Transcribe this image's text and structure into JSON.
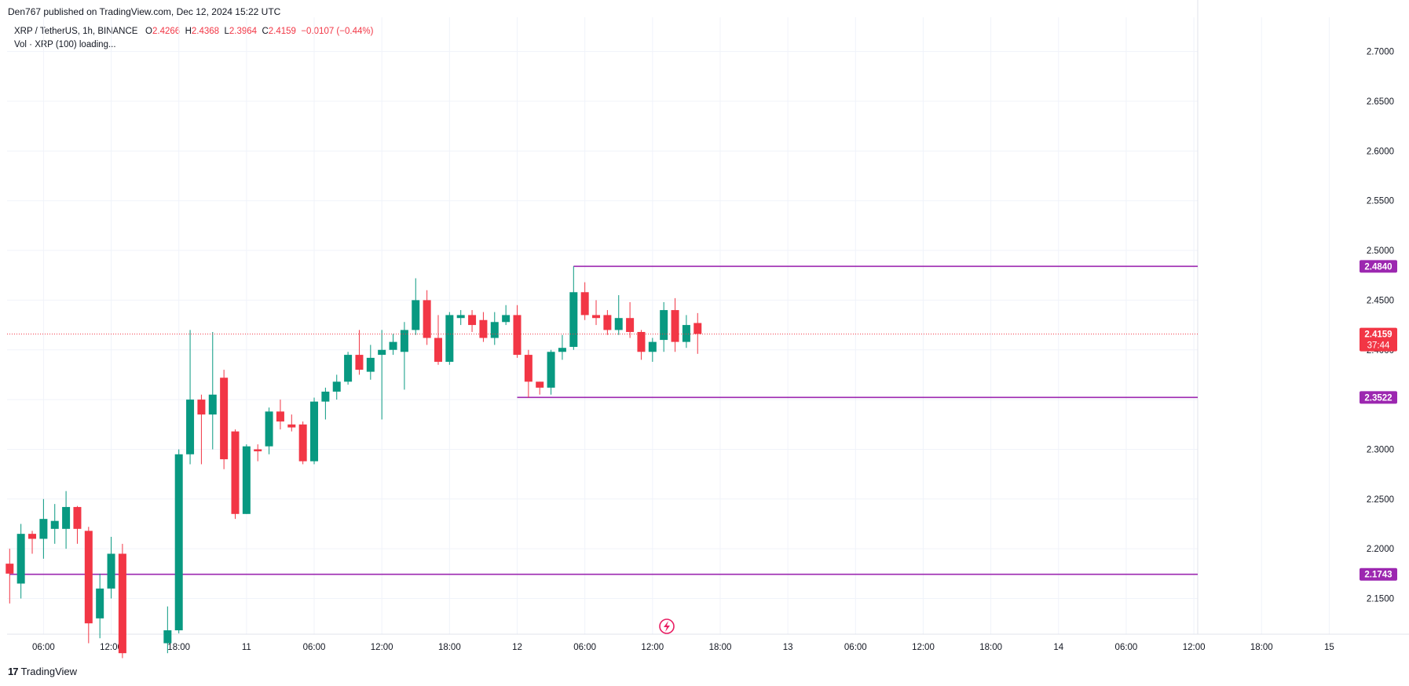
{
  "header": {
    "published": "Den767 published on TradingView.com, Dec 12, 2024 15:22 UTC"
  },
  "legend": {
    "symbol": "XRP / TetherUS, 1h, BINANCE",
    "o_label": "O",
    "o_value": "2.4266",
    "h_label": "H",
    "h_value": "2.4368",
    "l_label": "L",
    "l_value": "2.3964",
    "c_label": "C",
    "c_value": "2.4159",
    "change": "−0.0107 (−0.44%)",
    "volume": "Vol · XRP (100) loading..."
  },
  "footer": {
    "logo_mark": "17",
    "logo_text": "TradingView"
  },
  "colors": {
    "up": "#089981",
    "down": "#f23645",
    "level": "#9c27b0",
    "grid": "#f0f3fa",
    "text": "#131722"
  },
  "chart_data": {
    "type": "candlestick",
    "symbol": "XRP / TetherUS",
    "interval": "1h",
    "ylim": [
      2.11,
      2.72
    ],
    "y_ticks": [
      "2.1500",
      "2.2000",
      "2.2500",
      "2.3000",
      "2.3500",
      "2.4000",
      "2.4500",
      "2.5000",
      "2.5500",
      "2.6000",
      "2.6500",
      "2.7000"
    ],
    "x_ticks": [
      {
        "label": "06:00",
        "hour": 3
      },
      {
        "label": "12:00",
        "hour": 9
      },
      {
        "label": "18:00",
        "hour": 15
      },
      {
        "label": "11",
        "hour": 21
      },
      {
        "label": "06:00",
        "hour": 27
      },
      {
        "label": "12:00",
        "hour": 33
      },
      {
        "label": "18:00",
        "hour": 39
      },
      {
        "label": "12",
        "hour": 45
      },
      {
        "label": "06:00",
        "hour": 51
      },
      {
        "label": "12:00",
        "hour": 57
      },
      {
        "label": "18:00",
        "hour": 63
      },
      {
        "label": "13",
        "hour": 69
      },
      {
        "label": "06:00",
        "hour": 75
      },
      {
        "label": "12:00",
        "hour": 81
      },
      {
        "label": "18:00",
        "hour": 87
      },
      {
        "label": "14",
        "hour": 93
      },
      {
        "label": "06:00",
        "hour": 99
      },
      {
        "label": "12:00",
        "hour": 105
      },
      {
        "label": "18:00",
        "hour": 111
      },
      {
        "label": "15",
        "hour": 117
      }
    ],
    "candles": [
      [
        2.185,
        2.175,
        2.2,
        2.145
      ],
      [
        2.165,
        2.215,
        2.225,
        2.15
      ],
      [
        2.215,
        2.21,
        2.218,
        2.195
      ],
      [
        2.21,
        2.23,
        2.25,
        2.19
      ],
      [
        2.22,
        2.228,
        2.245,
        2.205
      ],
      [
        2.22,
        2.242,
        2.258,
        2.2
      ],
      [
        2.242,
        2.22,
        2.243,
        2.205
      ],
      [
        2.218,
        2.125,
        2.222,
        2.105
      ],
      [
        2.13,
        2.16,
        2.175,
        2.11
      ],
      [
        2.16,
        2.195,
        2.212,
        2.15
      ],
      [
        2.195,
        2.095,
        2.205,
        2.09
      ],
      [
        null,
        null,
        null,
        null
      ],
      [
        null,
        null,
        null,
        null
      ],
      [
        null,
        null,
        null,
        null
      ],
      [
        2.105,
        2.118,
        2.142,
        2.095
      ],
      [
        2.118,
        2.295,
        2.3,
        2.115
      ],
      [
        2.295,
        2.35,
        2.42,
        2.285
      ],
      [
        2.35,
        2.335,
        2.355,
        2.285
      ],
      [
        2.335,
        2.355,
        2.418,
        2.3
      ],
      [
        2.372,
        2.29,
        2.38,
        2.28
      ],
      [
        2.318,
        2.235,
        2.32,
        2.23
      ],
      [
        2.235,
        2.303,
        2.305,
        2.235
      ],
      [
        2.3,
        2.298,
        2.305,
        2.288
      ],
      [
        2.303,
        2.338,
        2.342,
        2.295
      ],
      [
        2.338,
        2.328,
        2.35,
        2.32
      ],
      [
        2.325,
        2.322,
        2.335,
        2.318
      ],
      [
        2.325,
        2.288,
        2.328,
        2.285
      ],
      [
        2.288,
        2.348,
        2.352,
        2.285
      ],
      [
        2.348,
        2.358,
        2.362,
        2.33
      ],
      [
        2.358,
        2.368,
        2.375,
        2.35
      ],
      [
        2.368,
        2.395,
        2.398,
        2.365
      ],
      [
        2.395,
        2.38,
        2.42,
        2.375
      ],
      [
        2.378,
        2.392,
        2.405,
        2.37
      ],
      [
        2.395,
        2.4,
        2.42,
        2.33
      ],
      [
        2.4,
        2.408,
        2.416,
        2.395
      ],
      [
        2.398,
        2.42,
        2.428,
        2.36
      ],
      [
        2.42,
        2.45,
        2.472,
        2.415
      ],
      [
        2.45,
        2.412,
        2.46,
        2.405
      ],
      [
        2.412,
        2.388,
        2.435,
        2.385
      ],
      [
        2.388,
        2.435,
        2.438,
        2.385
      ],
      [
        2.432,
        2.435,
        2.44,
        2.425
      ],
      [
        2.435,
        2.425,
        2.44,
        2.418
      ],
      [
        2.43,
        2.412,
        2.438,
        2.408
      ],
      [
        2.412,
        2.428,
        2.438,
        2.405
      ],
      [
        2.428,
        2.435,
        2.445,
        2.425
      ],
      [
        2.435,
        2.395,
        2.445,
        2.392
      ],
      [
        2.395,
        2.368,
        2.4,
        2.352
      ],
      [
        2.368,
        2.362,
        2.368,
        2.355
      ],
      [
        2.362,
        2.398,
        2.4,
        2.355
      ],
      [
        2.398,
        2.402,
        2.415,
        2.39
      ],
      [
        2.403,
        2.458,
        2.484,
        2.4
      ],
      [
        2.458,
        2.435,
        2.468,
        2.43
      ],
      [
        2.435,
        2.432,
        2.45,
        2.425
      ],
      [
        2.435,
        2.42,
        2.44,
        2.415
      ],
      [
        2.42,
        2.432,
        2.455,
        2.415
      ],
      [
        2.432,
        2.418,
        2.448,
        2.412
      ],
      [
        2.418,
        2.398,
        2.42,
        2.39
      ],
      [
        2.398,
        2.408,
        2.412,
        2.388
      ],
      [
        2.41,
        2.44,
        2.448,
        2.398
      ],
      [
        2.44,
        2.408,
        2.452,
        2.398
      ],
      [
        2.408,
        2.425,
        2.435,
        2.402
      ],
      [
        2.427,
        2.416,
        2.437,
        2.396
      ]
    ],
    "levels": [
      {
        "value": "2.4840",
        "price": 2.484,
        "start_hour": 50
      },
      {
        "value": "2.3522",
        "price": 2.3522,
        "start_hour": 45
      },
      {
        "value": "2.1743",
        "price": 2.1743,
        "start_hour": 0
      }
    ],
    "last_price": {
      "value": "2.4159",
      "price": 2.4159,
      "countdown": "37:44"
    }
  }
}
